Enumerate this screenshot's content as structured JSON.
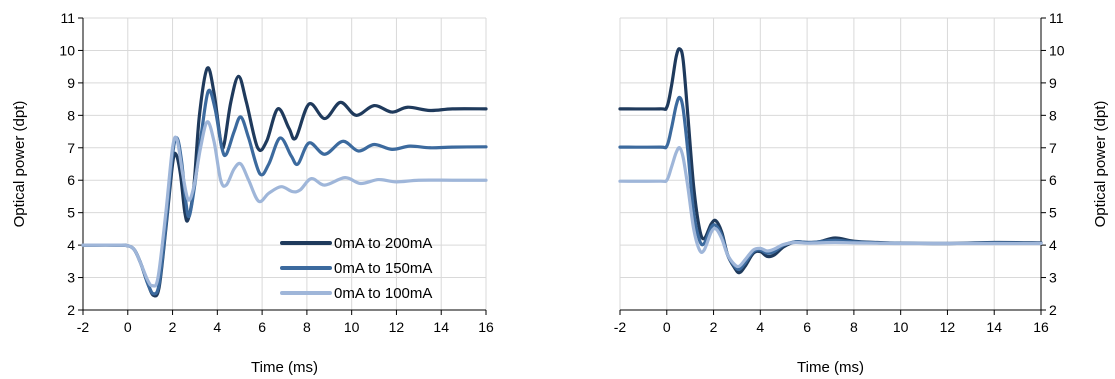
{
  "chart_data": [
    {
      "type": "line",
      "title": "",
      "xlabel": "Time (ms)",
      "ylabel": "Optical power (dpt)",
      "xlim": [
        -2,
        16
      ],
      "ylim": [
        2,
        11
      ],
      "xticks": [
        "-2",
        "0",
        "2",
        "4",
        "6",
        "8",
        "10",
        "12",
        "14",
        "16"
      ],
      "yticks": [
        "2",
        "3",
        "4",
        "5",
        "6",
        "7",
        "8",
        "9",
        "10",
        "11"
      ],
      "grid": true,
      "legend_position": "bottom-right",
      "series": [
        {
          "name": "0mA to 200mA",
          "color": "#1f3a5c",
          "points": [
            [
              -2,
              4.0
            ],
            [
              -0.5,
              4.0
            ],
            [
              0,
              3.98
            ],
            [
              0.3,
              3.85
            ],
            [
              0.6,
              3.4
            ],
            [
              0.9,
              2.8
            ],
            [
              1.15,
              2.45
            ],
            [
              1.4,
              2.7
            ],
            [
              1.7,
              4.5
            ],
            [
              2.0,
              6.5
            ],
            [
              2.15,
              6.8
            ],
            [
              2.35,
              6.2
            ],
            [
              2.55,
              5.0
            ],
            [
              2.7,
              4.8
            ],
            [
              2.95,
              5.8
            ],
            [
              3.2,
              8.0
            ],
            [
              3.55,
              9.45
            ],
            [
              3.85,
              8.7
            ],
            [
              4.15,
              7.2
            ],
            [
              4.3,
              7.1
            ],
            [
              4.6,
              8.4
            ],
            [
              4.95,
              9.2
            ],
            [
              5.3,
              8.4
            ],
            [
              5.8,
              7.0
            ],
            [
              6.2,
              7.2
            ],
            [
              6.7,
              8.2
            ],
            [
              7.2,
              7.6
            ],
            [
              7.5,
              7.3
            ],
            [
              8.1,
              8.35
            ],
            [
              8.8,
              7.9
            ],
            [
              9.5,
              8.4
            ],
            [
              10.2,
              8.0
            ],
            [
              11.0,
              8.3
            ],
            [
              11.8,
              8.1
            ],
            [
              12.5,
              8.25
            ],
            [
              13.5,
              8.15
            ],
            [
              14.5,
              8.2
            ],
            [
              16,
              8.2
            ]
          ]
        },
        {
          "name": "0mA to 150mA",
          "color": "#3c6a9e",
          "points": [
            [
              -2,
              4.0
            ],
            [
              -0.5,
              4.0
            ],
            [
              0,
              3.98
            ],
            [
              0.3,
              3.85
            ],
            [
              0.6,
              3.4
            ],
            [
              0.9,
              2.8
            ],
            [
              1.15,
              2.5
            ],
            [
              1.4,
              2.8
            ],
            [
              1.7,
              4.6
            ],
            [
              2.0,
              6.8
            ],
            [
              2.2,
              7.3
            ],
            [
              2.4,
              6.6
            ],
            [
              2.6,
              5.3
            ],
            [
              2.75,
              4.9
            ],
            [
              3.0,
              5.9
            ],
            [
              3.3,
              7.5
            ],
            [
              3.6,
              8.75
            ],
            [
              3.9,
              8.2
            ],
            [
              4.2,
              7.0
            ],
            [
              4.4,
              6.8
            ],
            [
              4.75,
              7.5
            ],
            [
              5.05,
              7.95
            ],
            [
              5.4,
              7.3
            ],
            [
              5.9,
              6.2
            ],
            [
              6.3,
              6.5
            ],
            [
              6.8,
              7.3
            ],
            [
              7.3,
              6.75
            ],
            [
              7.6,
              6.5
            ],
            [
              8.1,
              7.15
            ],
            [
              8.8,
              6.8
            ],
            [
              9.6,
              7.2
            ],
            [
              10.3,
              6.9
            ],
            [
              11.0,
              7.1
            ],
            [
              11.8,
              6.95
            ],
            [
              12.6,
              7.05
            ],
            [
              13.5,
              7.0
            ],
            [
              14.5,
              7.02
            ],
            [
              16,
              7.03
            ]
          ]
        },
        {
          "name": "0mA to 100mA",
          "color": "#9fb6d9",
          "points": [
            [
              -2,
              4.0
            ],
            [
              -0.5,
              4.0
            ],
            [
              0,
              3.98
            ],
            [
              0.3,
              3.85
            ],
            [
              0.6,
              3.4
            ],
            [
              0.9,
              2.9
            ],
            [
              1.1,
              2.75
            ],
            [
              1.35,
              3.0
            ],
            [
              1.7,
              5.0
            ],
            [
              2.0,
              7.0
            ],
            [
              2.2,
              7.25
            ],
            [
              2.45,
              6.2
            ],
            [
              2.7,
              5.4
            ],
            [
              2.95,
              5.8
            ],
            [
              3.25,
              7.0
            ],
            [
              3.55,
              7.8
            ],
            [
              3.85,
              7.2
            ],
            [
              4.15,
              6.0
            ],
            [
              4.4,
              5.85
            ],
            [
              4.75,
              6.35
            ],
            [
              5.05,
              6.5
            ],
            [
              5.4,
              6.0
            ],
            [
              5.85,
              5.35
            ],
            [
              6.3,
              5.6
            ],
            [
              6.85,
              5.8
            ],
            [
              7.35,
              5.65
            ],
            [
              7.7,
              5.7
            ],
            [
              8.2,
              6.05
            ],
            [
              8.8,
              5.85
            ],
            [
              9.7,
              6.08
            ],
            [
              10.4,
              5.9
            ],
            [
              11.2,
              6.02
            ],
            [
              12.0,
              5.95
            ],
            [
              13.0,
              6.0
            ],
            [
              14.5,
              6.0
            ],
            [
              16,
              6.0
            ]
          ]
        }
      ]
    },
    {
      "type": "line",
      "title": "",
      "xlabel": "Time (ms)",
      "ylabel": "Optical power (dpt)",
      "xlim": [
        -2,
        16
      ],
      "ylim": [
        2,
        11
      ],
      "xticks": [
        "-2",
        "0",
        "2",
        "4",
        "6",
        "8",
        "10",
        "12",
        "14",
        "16"
      ],
      "yticks": [
        "2",
        "3",
        "4",
        "5",
        "6",
        "7",
        "8",
        "9",
        "10",
        "11"
      ],
      "grid": true,
      "y_axis_side": "right",
      "series": [
        {
          "name": "0mA to 200mA",
          "color": "#1f3a5c",
          "points": [
            [
              -2,
              8.2
            ],
            [
              -0.3,
              8.2
            ],
            [
              0,
              8.25
            ],
            [
              0.2,
              8.9
            ],
            [
              0.4,
              9.8
            ],
            [
              0.55,
              10.05
            ],
            [
              0.7,
              9.7
            ],
            [
              0.9,
              8.0
            ],
            [
              1.15,
              5.8
            ],
            [
              1.4,
              4.5
            ],
            [
              1.6,
              4.2
            ],
            [
              1.9,
              4.65
            ],
            [
              2.1,
              4.75
            ],
            [
              2.35,
              4.4
            ],
            [
              2.6,
              3.7
            ],
            [
              2.9,
              3.3
            ],
            [
              3.1,
              3.15
            ],
            [
              3.35,
              3.35
            ],
            [
              3.7,
              3.75
            ],
            [
              4.0,
              3.8
            ],
            [
              4.3,
              3.65
            ],
            [
              4.6,
              3.7
            ],
            [
              5.0,
              3.95
            ],
            [
              5.5,
              4.1
            ],
            [
              6.0,
              4.08
            ],
            [
              6.5,
              4.1
            ],
            [
              7.2,
              4.22
            ],
            [
              8.0,
              4.12
            ],
            [
              9.0,
              4.08
            ],
            [
              10.0,
              4.06
            ],
            [
              12.0,
              4.05
            ],
            [
              14.0,
              4.08
            ],
            [
              16,
              4.07
            ]
          ]
        },
        {
          "name": "0mA to 150mA",
          "color": "#3c6a9e",
          "points": [
            [
              -2,
              7.02
            ],
            [
              -0.3,
              7.02
            ],
            [
              0,
              7.05
            ],
            [
              0.2,
              7.6
            ],
            [
              0.4,
              8.3
            ],
            [
              0.55,
              8.55
            ],
            [
              0.7,
              8.2
            ],
            [
              0.9,
              6.9
            ],
            [
              1.15,
              5.0
            ],
            [
              1.4,
              4.15
            ],
            [
              1.6,
              4.05
            ],
            [
              1.9,
              4.55
            ],
            [
              2.1,
              4.6
            ],
            [
              2.35,
              4.3
            ],
            [
              2.6,
              3.7
            ],
            [
              2.9,
              3.35
            ],
            [
              3.1,
              3.25
            ],
            [
              3.35,
              3.45
            ],
            [
              3.7,
              3.8
            ],
            [
              4.0,
              3.85
            ],
            [
              4.3,
              3.75
            ],
            [
              4.6,
              3.8
            ],
            [
              5.0,
              4.0
            ],
            [
              5.5,
              4.1
            ],
            [
              6.0,
              4.08
            ],
            [
              6.5,
              4.1
            ],
            [
              7.2,
              4.15
            ],
            [
              8.0,
              4.1
            ],
            [
              9.0,
              4.07
            ],
            [
              10.0,
              4.06
            ],
            [
              12.0,
              4.05
            ],
            [
              14.0,
              4.07
            ],
            [
              16,
              4.06
            ]
          ]
        },
        {
          "name": "0mA to 100mA",
          "color": "#9fb6d9",
          "points": [
            [
              -2,
              5.97
            ],
            [
              -0.3,
              5.97
            ],
            [
              0,
              6.0
            ],
            [
              0.2,
              6.4
            ],
            [
              0.4,
              6.85
            ],
            [
              0.55,
              7.0
            ],
            [
              0.7,
              6.7
            ],
            [
              0.9,
              5.8
            ],
            [
              1.15,
              4.5
            ],
            [
              1.4,
              3.85
            ],
            [
              1.6,
              3.85
            ],
            [
              1.9,
              4.4
            ],
            [
              2.1,
              4.5
            ],
            [
              2.35,
              4.2
            ],
            [
              2.6,
              3.7
            ],
            [
              2.9,
              3.4
            ],
            [
              3.1,
              3.35
            ],
            [
              3.35,
              3.55
            ],
            [
              3.7,
              3.85
            ],
            [
              4.0,
              3.9
            ],
            [
              4.3,
              3.82
            ],
            [
              4.6,
              3.88
            ],
            [
              5.0,
              4.02
            ],
            [
              5.5,
              4.08
            ],
            [
              6.0,
              4.06
            ],
            [
              6.5,
              4.07
            ],
            [
              7.2,
              4.08
            ],
            [
              8.0,
              4.07
            ],
            [
              9.0,
              4.06
            ],
            [
              10.0,
              4.05
            ],
            [
              12.0,
              4.05
            ],
            [
              14.0,
              4.05
            ],
            [
              16,
              4.05
            ]
          ]
        }
      ]
    }
  ]
}
